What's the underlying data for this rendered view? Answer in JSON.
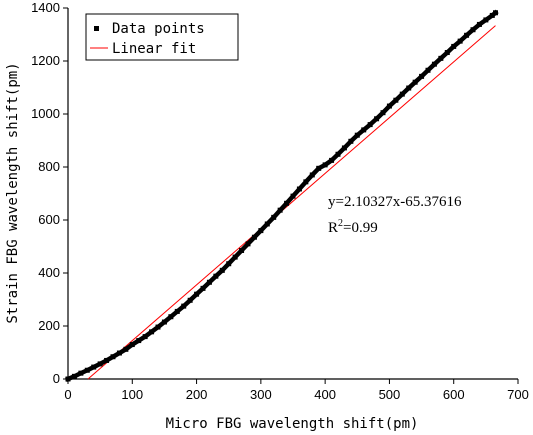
{
  "chart_data": {
    "type": "scatter",
    "xlabel": "Micro FBG wavelength shift(pm)",
    "ylabel": "Strain FBG wavelength shift(pm)",
    "xlim": [
      0,
      700
    ],
    "ylim": [
      0,
      1400
    ],
    "xticks": [
      0,
      100,
      200,
      300,
      400,
      500,
      600,
      700
    ],
    "yticks": [
      0,
      200,
      400,
      600,
      800,
      1000,
      1200,
      1400
    ],
    "grid": false,
    "legend_position": "top-left",
    "series": [
      {
        "name": "Data points",
        "kind": "scatter",
        "color": "#000000",
        "x": [
          0,
          10,
          20,
          30,
          40,
          50,
          60,
          70,
          80,
          90,
          100,
          110,
          120,
          130,
          140,
          150,
          160,
          170,
          180,
          190,
          200,
          210,
          220,
          230,
          240,
          250,
          260,
          270,
          280,
          290,
          300,
          310,
          320,
          330,
          340,
          350,
          360,
          370,
          380,
          390,
          400,
          410,
          420,
          430,
          440,
          450,
          460,
          470,
          480,
          490,
          500,
          510,
          520,
          530,
          540,
          550,
          560,
          570,
          580,
          590,
          600,
          610,
          620,
          630,
          640,
          650,
          660,
          665
        ],
        "y": [
          0,
          10,
          22,
          33,
          45,
          57,
          70,
          84,
          98,
          112,
          130,
          145,
          160,
          178,
          196,
          215,
          235,
          255,
          275,
          297,
          320,
          342,
          365,
          388,
          410,
          435,
          460,
          485,
          510,
          535,
          560,
          585,
          610,
          637,
          663,
          690,
          717,
          744,
          770,
          795,
          808,
          825,
          848,
          872,
          897,
          920,
          940,
          960,
          982,
          1005,
          1030,
          1052,
          1075,
          1098,
          1120,
          1142,
          1165,
          1188,
          1210,
          1232,
          1255,
          1275,
          1297,
          1318,
          1338,
          1355,
          1372,
          1382
        ]
      },
      {
        "name": "Linear fit",
        "kind": "line",
        "color": "#ff0000",
        "x": [
          31.09,
          665
        ],
        "y": [
          0,
          1333.3
        ]
      }
    ],
    "annotations": {
      "equation": "y=2.10327x-65.37616",
      "r2_prefix": "R",
      "r2_sup": "2",
      "r2_suffix": "=0.99"
    }
  }
}
